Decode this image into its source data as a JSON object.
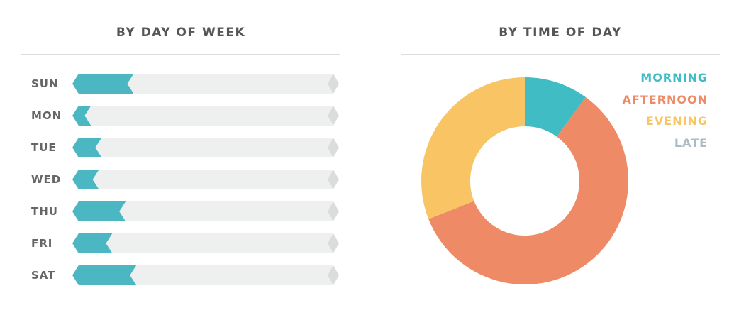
{
  "chart_data": [
    {
      "type": "bar",
      "title": "BY DAY OF WEEK",
      "orientation": "horizontal",
      "categories": [
        "SUN",
        "MON",
        "TUE",
        "WED",
        "THU",
        "FRI",
        "SAT"
      ],
      "values": [
        23,
        7,
        11,
        10,
        20,
        15,
        24
      ],
      "xlim": [
        0,
        100
      ],
      "color": "#4bb7c2",
      "track_color": "#eeefef"
    },
    {
      "type": "pie",
      "donut": true,
      "title": "BY TIME OF DAY",
      "categories": [
        "MORNING",
        "AFTERNOON",
        "EVENING",
        "LATE"
      ],
      "values": [
        10,
        59,
        31,
        0
      ],
      "colors": [
        "#3fbcc4",
        "#ef8a66",
        "#f9c463",
        "#a9bcc4"
      ],
      "legend": "top-right"
    }
  ]
}
